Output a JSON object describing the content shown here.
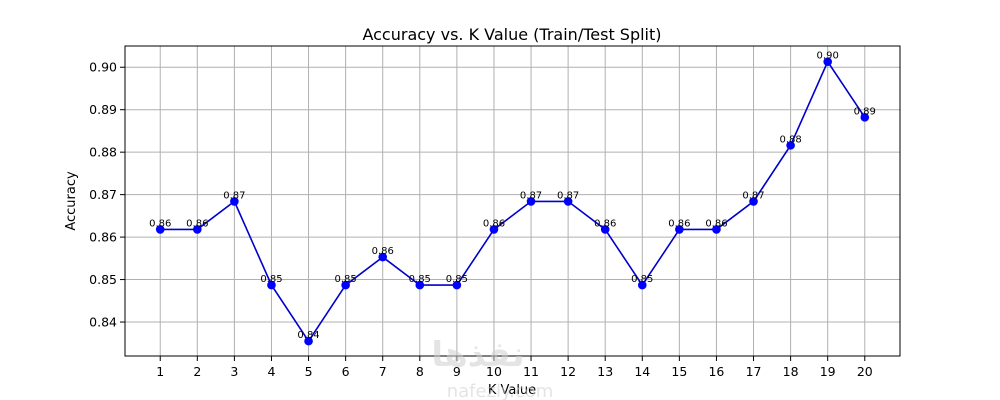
{
  "chart_data": {
    "type": "line",
    "title": "Accuracy vs. K Value (Train/Test Split)",
    "xlabel": "K Value",
    "ylabel": "Accuracy",
    "x": [
      1,
      2,
      3,
      4,
      5,
      6,
      7,
      8,
      9,
      10,
      11,
      12,
      13,
      14,
      15,
      16,
      17,
      18,
      19,
      20
    ],
    "values": [
      0.8618,
      0.8618,
      0.8684,
      0.8487,
      0.8355,
      0.8487,
      0.8553,
      0.8487,
      0.8487,
      0.8618,
      0.8684,
      0.8684,
      0.8618,
      0.8487,
      0.8618,
      0.8618,
      0.8684,
      0.8816,
      0.9013,
      0.8882
    ],
    "data_labels": [
      "0.86",
      "0.86",
      "0.87",
      "0.85",
      "0.84",
      "0.85",
      "0.86",
      "0.85",
      "0.85",
      "0.86",
      "0.87",
      "0.87",
      "0.86",
      "0.85",
      "0.86",
      "0.86",
      "0.87",
      "0.88",
      "0.90",
      "0.89"
    ],
    "xticks": [
      "1",
      "2",
      "3",
      "4",
      "5",
      "6",
      "7",
      "8",
      "9",
      "10",
      "11",
      "12",
      "13",
      "14",
      "15",
      "16",
      "17",
      "18",
      "19",
      "20"
    ],
    "yticks": [
      "0.84",
      "0.85",
      "0.86",
      "0.87",
      "0.88",
      "0.89",
      "0.90"
    ],
    "ytick_values": [
      0.84,
      0.85,
      0.86,
      0.87,
      0.88,
      0.89,
      0.9
    ],
    "xlim": [
      0.05,
      20.95
    ],
    "ylim": [
      0.832,
      0.905
    ],
    "grid": true,
    "line_color": "#0000cc",
    "marker_color": "#0000ff"
  },
  "watermark": {
    "text_ar": "نفذها",
    "text_en": "nafezly.com"
  }
}
